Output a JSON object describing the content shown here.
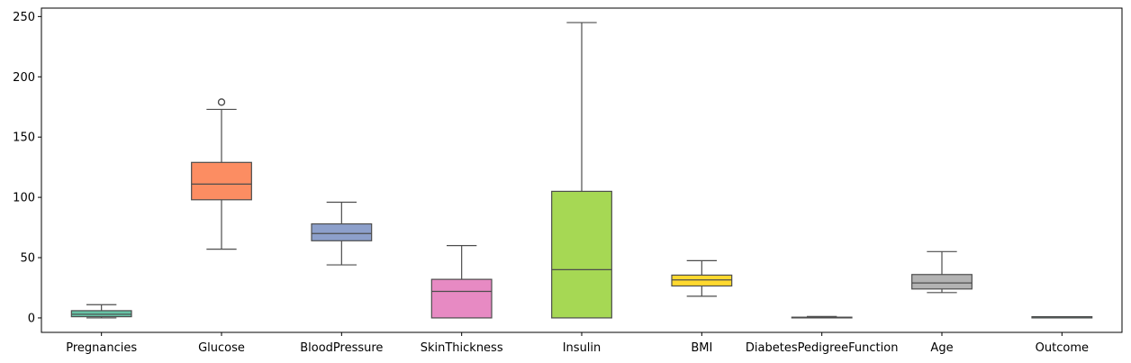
{
  "chart_data": {
    "type": "box",
    "title": "",
    "xlabel": "",
    "ylabel": "",
    "ylim": [
      -12,
      257
    ],
    "yticks": [
      0,
      50,
      100,
      150,
      200,
      250
    ],
    "grid": false,
    "categories": [
      "Pregnancies",
      "Glucose",
      "BloodPressure",
      "SkinThickness",
      "Insulin",
      "BMI",
      "DiabetesPedigreeFunction",
      "Age",
      "Outcome"
    ],
    "boxes": [
      {
        "name": "Pregnancies",
        "color": "#66c2a5",
        "whisker_low": 0,
        "q1": 1,
        "median": 3,
        "q3": 6,
        "whisker_high": 11,
        "outliers": []
      },
      {
        "name": "Glucose",
        "color": "#fc8d62",
        "whisker_low": 57,
        "q1": 98,
        "median": 111,
        "q3": 129,
        "whisker_high": 173,
        "outliers": [
          179,
          179
        ]
      },
      {
        "name": "BloodPressure",
        "color": "#8da0cb",
        "whisker_low": 44,
        "q1": 64,
        "median": 70,
        "q3": 78,
        "whisker_high": 96,
        "outliers": []
      },
      {
        "name": "SkinThickness",
        "color": "#e78ac3",
        "whisker_low": 0,
        "q1": 0,
        "median": 22,
        "q3": 32,
        "whisker_high": 60,
        "outliers": []
      },
      {
        "name": "Insulin",
        "color": "#a6d854",
        "whisker_low": 0,
        "q1": 0,
        "median": 40,
        "q3": 105,
        "whisker_high": 245,
        "outliers": []
      },
      {
        "name": "BMI",
        "color": "#ffd92f",
        "whisker_low": 18,
        "q1": 26.5,
        "median": 31.5,
        "q3": 35.5,
        "whisker_high": 47.5,
        "outliers": []
      },
      {
        "name": "DiabetesPedigreeFunction",
        "color": "#e5c494",
        "whisker_low": 0.08,
        "q1": 0.24,
        "median": 0.37,
        "q3": 0.6,
        "whisker_high": 1.2,
        "outliers": []
      },
      {
        "name": "Age",
        "color": "#b3b3b3",
        "whisker_low": 21,
        "q1": 24,
        "median": 29,
        "q3": 36,
        "whisker_high": 55,
        "outliers": []
      },
      {
        "name": "Outcome",
        "color": "#66c2a5",
        "whisker_low": 0,
        "q1": 0,
        "median": 0,
        "q3": 1,
        "whisker_high": 1,
        "outliers": []
      }
    ]
  }
}
